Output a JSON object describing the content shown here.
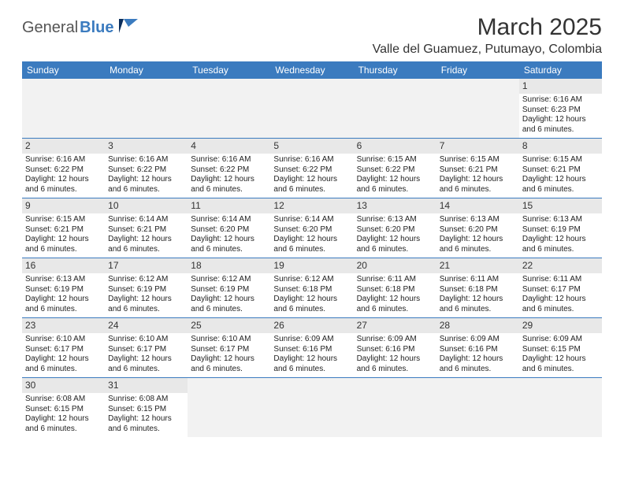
{
  "logo": {
    "general": "General",
    "blue": "Blue"
  },
  "title": "March 2025",
  "location": "Valle del Guamuez, Putumayo, Colombia",
  "colors": {
    "header_bg": "#3b7bbf",
    "header_text": "#ffffff",
    "daynum_bg": "#e8e8e8",
    "empty_bg": "#f2f2f2",
    "rule": "#3b7bbf",
    "text": "#222222"
  },
  "typography": {
    "title_fontsize": 30,
    "location_fontsize": 16,
    "weekday_fontsize": 12,
    "daynum_fontsize": 12,
    "body_fontsize": 10
  },
  "layout": {
    "columns": 7,
    "rows": 6
  },
  "weekdays": [
    "Sunday",
    "Monday",
    "Tuesday",
    "Wednesday",
    "Thursday",
    "Friday",
    "Saturday"
  ],
  "weeks": [
    [
      null,
      null,
      null,
      null,
      null,
      null,
      {
        "n": "1",
        "sunrise": "Sunrise: 6:16 AM",
        "sunset": "Sunset: 6:23 PM",
        "day1": "Daylight: 12 hours",
        "day2": "and 6 minutes."
      }
    ],
    [
      {
        "n": "2",
        "sunrise": "Sunrise: 6:16 AM",
        "sunset": "Sunset: 6:22 PM",
        "day1": "Daylight: 12 hours",
        "day2": "and 6 minutes."
      },
      {
        "n": "3",
        "sunrise": "Sunrise: 6:16 AM",
        "sunset": "Sunset: 6:22 PM",
        "day1": "Daylight: 12 hours",
        "day2": "and 6 minutes."
      },
      {
        "n": "4",
        "sunrise": "Sunrise: 6:16 AM",
        "sunset": "Sunset: 6:22 PM",
        "day1": "Daylight: 12 hours",
        "day2": "and 6 minutes."
      },
      {
        "n": "5",
        "sunrise": "Sunrise: 6:16 AM",
        "sunset": "Sunset: 6:22 PM",
        "day1": "Daylight: 12 hours",
        "day2": "and 6 minutes."
      },
      {
        "n": "6",
        "sunrise": "Sunrise: 6:15 AM",
        "sunset": "Sunset: 6:22 PM",
        "day1": "Daylight: 12 hours",
        "day2": "and 6 minutes."
      },
      {
        "n": "7",
        "sunrise": "Sunrise: 6:15 AM",
        "sunset": "Sunset: 6:21 PM",
        "day1": "Daylight: 12 hours",
        "day2": "and 6 minutes."
      },
      {
        "n": "8",
        "sunrise": "Sunrise: 6:15 AM",
        "sunset": "Sunset: 6:21 PM",
        "day1": "Daylight: 12 hours",
        "day2": "and 6 minutes."
      }
    ],
    [
      {
        "n": "9",
        "sunrise": "Sunrise: 6:15 AM",
        "sunset": "Sunset: 6:21 PM",
        "day1": "Daylight: 12 hours",
        "day2": "and 6 minutes."
      },
      {
        "n": "10",
        "sunrise": "Sunrise: 6:14 AM",
        "sunset": "Sunset: 6:21 PM",
        "day1": "Daylight: 12 hours",
        "day2": "and 6 minutes."
      },
      {
        "n": "11",
        "sunrise": "Sunrise: 6:14 AM",
        "sunset": "Sunset: 6:20 PM",
        "day1": "Daylight: 12 hours",
        "day2": "and 6 minutes."
      },
      {
        "n": "12",
        "sunrise": "Sunrise: 6:14 AM",
        "sunset": "Sunset: 6:20 PM",
        "day1": "Daylight: 12 hours",
        "day2": "and 6 minutes."
      },
      {
        "n": "13",
        "sunrise": "Sunrise: 6:13 AM",
        "sunset": "Sunset: 6:20 PM",
        "day1": "Daylight: 12 hours",
        "day2": "and 6 minutes."
      },
      {
        "n": "14",
        "sunrise": "Sunrise: 6:13 AM",
        "sunset": "Sunset: 6:20 PM",
        "day1": "Daylight: 12 hours",
        "day2": "and 6 minutes."
      },
      {
        "n": "15",
        "sunrise": "Sunrise: 6:13 AM",
        "sunset": "Sunset: 6:19 PM",
        "day1": "Daylight: 12 hours",
        "day2": "and 6 minutes."
      }
    ],
    [
      {
        "n": "16",
        "sunrise": "Sunrise: 6:13 AM",
        "sunset": "Sunset: 6:19 PM",
        "day1": "Daylight: 12 hours",
        "day2": "and 6 minutes."
      },
      {
        "n": "17",
        "sunrise": "Sunrise: 6:12 AM",
        "sunset": "Sunset: 6:19 PM",
        "day1": "Daylight: 12 hours",
        "day2": "and 6 minutes."
      },
      {
        "n": "18",
        "sunrise": "Sunrise: 6:12 AM",
        "sunset": "Sunset: 6:19 PM",
        "day1": "Daylight: 12 hours",
        "day2": "and 6 minutes."
      },
      {
        "n": "19",
        "sunrise": "Sunrise: 6:12 AM",
        "sunset": "Sunset: 6:18 PM",
        "day1": "Daylight: 12 hours",
        "day2": "and 6 minutes."
      },
      {
        "n": "20",
        "sunrise": "Sunrise: 6:11 AM",
        "sunset": "Sunset: 6:18 PM",
        "day1": "Daylight: 12 hours",
        "day2": "and 6 minutes."
      },
      {
        "n": "21",
        "sunrise": "Sunrise: 6:11 AM",
        "sunset": "Sunset: 6:18 PM",
        "day1": "Daylight: 12 hours",
        "day2": "and 6 minutes."
      },
      {
        "n": "22",
        "sunrise": "Sunrise: 6:11 AM",
        "sunset": "Sunset: 6:17 PM",
        "day1": "Daylight: 12 hours",
        "day2": "and 6 minutes."
      }
    ],
    [
      {
        "n": "23",
        "sunrise": "Sunrise: 6:10 AM",
        "sunset": "Sunset: 6:17 PM",
        "day1": "Daylight: 12 hours",
        "day2": "and 6 minutes."
      },
      {
        "n": "24",
        "sunrise": "Sunrise: 6:10 AM",
        "sunset": "Sunset: 6:17 PM",
        "day1": "Daylight: 12 hours",
        "day2": "and 6 minutes."
      },
      {
        "n": "25",
        "sunrise": "Sunrise: 6:10 AM",
        "sunset": "Sunset: 6:17 PM",
        "day1": "Daylight: 12 hours",
        "day2": "and 6 minutes."
      },
      {
        "n": "26",
        "sunrise": "Sunrise: 6:09 AM",
        "sunset": "Sunset: 6:16 PM",
        "day1": "Daylight: 12 hours",
        "day2": "and 6 minutes."
      },
      {
        "n": "27",
        "sunrise": "Sunrise: 6:09 AM",
        "sunset": "Sunset: 6:16 PM",
        "day1": "Daylight: 12 hours",
        "day2": "and 6 minutes."
      },
      {
        "n": "28",
        "sunrise": "Sunrise: 6:09 AM",
        "sunset": "Sunset: 6:16 PM",
        "day1": "Daylight: 12 hours",
        "day2": "and 6 minutes."
      },
      {
        "n": "29",
        "sunrise": "Sunrise: 6:09 AM",
        "sunset": "Sunset: 6:15 PM",
        "day1": "Daylight: 12 hours",
        "day2": "and 6 minutes."
      }
    ],
    [
      {
        "n": "30",
        "sunrise": "Sunrise: 6:08 AM",
        "sunset": "Sunset: 6:15 PM",
        "day1": "Daylight: 12 hours",
        "day2": "and 6 minutes."
      },
      {
        "n": "31",
        "sunrise": "Sunrise: 6:08 AM",
        "sunset": "Sunset: 6:15 PM",
        "day1": "Daylight: 12 hours",
        "day2": "and 6 minutes."
      },
      null,
      null,
      null,
      null,
      null
    ]
  ]
}
